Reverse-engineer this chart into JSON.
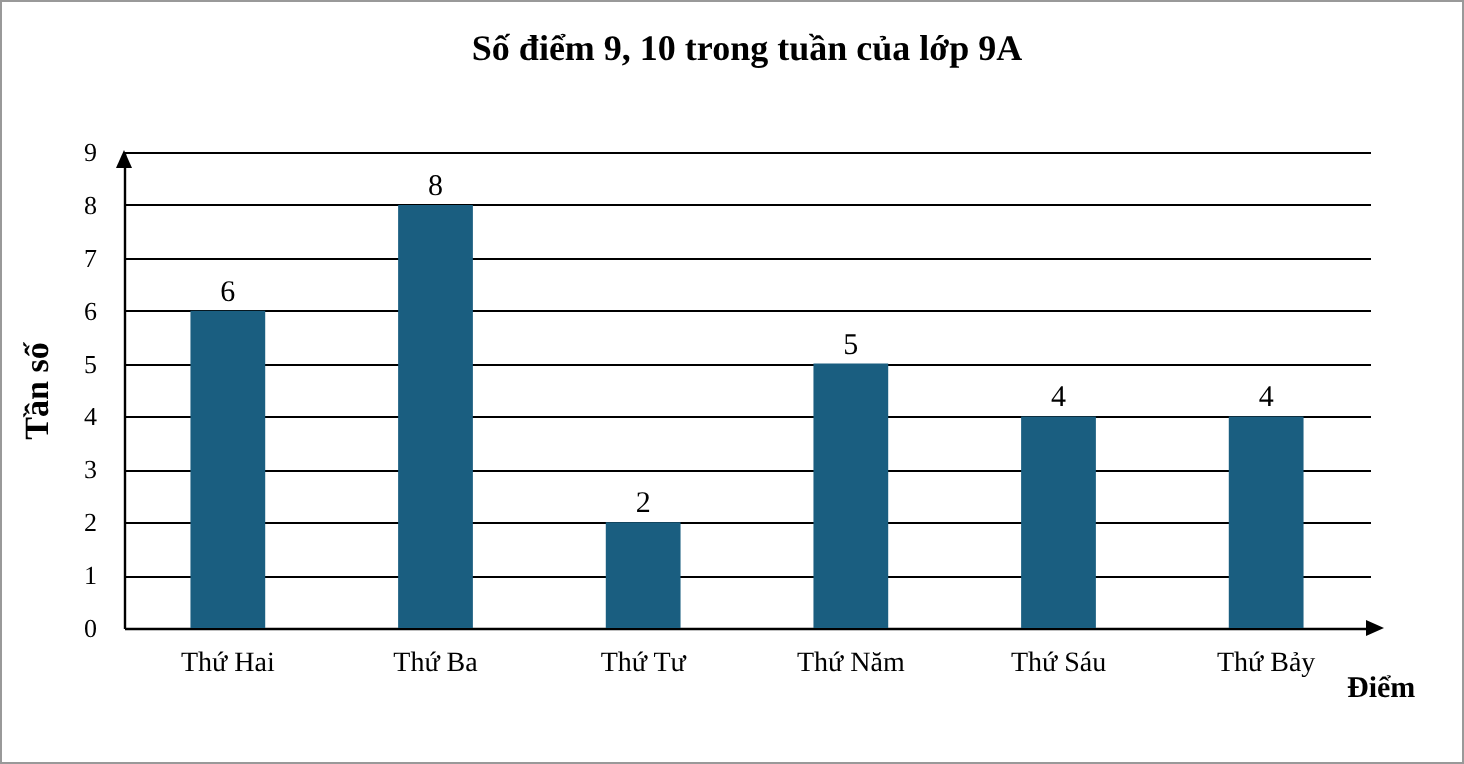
{
  "chart_data": {
    "type": "bar",
    "title": "Số điểm 9, 10 trong tuần của lớp 9A",
    "xlabel": "Điểm",
    "ylabel": "Tần số",
    "categories": [
      "Thứ Hai",
      "Thứ Ba",
      "Thứ Tư",
      "Thứ Năm",
      "Thứ Sáu",
      "Thứ Bảy"
    ],
    "values": [
      6,
      8,
      2,
      5,
      4,
      4
    ],
    "color": "#1a5e80",
    "ylim": [
      0,
      9
    ],
    "yticks": [
      0,
      1,
      2,
      3,
      4,
      5,
      6,
      7,
      8,
      9
    ],
    "grid": "y",
    "data_labels": true
  }
}
